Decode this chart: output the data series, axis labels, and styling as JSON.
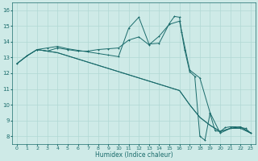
{
  "title": "",
  "xlabel": "Humidex (Indice chaleur)",
  "bg_color": "#ceeae7",
  "grid_color": "#b0d8d4",
  "line_color": "#1a6b6b",
  "xlim": [
    -0.5,
    23.5
  ],
  "ylim": [
    7.5,
    16.5
  ],
  "xticks": [
    0,
    1,
    2,
    3,
    4,
    5,
    6,
    7,
    8,
    9,
    10,
    11,
    12,
    13,
    14,
    15,
    16,
    17,
    18,
    19,
    20,
    21,
    22,
    23
  ],
  "yticks": [
    8,
    9,
    10,
    11,
    12,
    13,
    14,
    15,
    16
  ],
  "s1_x": [
    0,
    1,
    2,
    3,
    4,
    5,
    6,
    7,
    8,
    9,
    10,
    11,
    12,
    13,
    14,
    15,
    16,
    17,
    18,
    19,
    20,
    21,
    22,
    23
  ],
  "s1_y": [
    12.6,
    13.1,
    13.5,
    13.4,
    13.6,
    13.5,
    13.4,
    13.4,
    13.5,
    13.55,
    13.6,
    14.1,
    14.3,
    13.8,
    14.35,
    15.1,
    15.3,
    12.2,
    11.7,
    9.5,
    8.2,
    8.5,
    8.5,
    8.2
  ],
  "s2_x": [
    0,
    1,
    2,
    3,
    4,
    5,
    6,
    7,
    8,
    9,
    10,
    11,
    12,
    13,
    14,
    15,
    16,
    17,
    18,
    19,
    20,
    21,
    22,
    23
  ],
  "s2_y": [
    12.6,
    13.1,
    13.5,
    13.4,
    13.3,
    13.1,
    12.9,
    12.7,
    12.5,
    12.3,
    12.1,
    11.9,
    11.7,
    11.5,
    11.3,
    11.1,
    10.9,
    10.0,
    9.2,
    8.7,
    8.3,
    8.5,
    8.6,
    8.2
  ],
  "s3_x": [
    0,
    1,
    2,
    3,
    4,
    5,
    6,
    7,
    8,
    9,
    10,
    11,
    12,
    13,
    14,
    15,
    16,
    17,
    18,
    19,
    20,
    21,
    22,
    23
  ],
  "s3_y": [
    12.6,
    13.1,
    13.5,
    13.4,
    13.3,
    13.1,
    12.9,
    12.7,
    12.5,
    12.3,
    12.1,
    11.9,
    11.7,
    11.5,
    11.3,
    11.1,
    10.9,
    10.0,
    9.2,
    8.7,
    8.3,
    8.5,
    8.6,
    8.2
  ],
  "s4_x": [
    2,
    3,
    4,
    5,
    6,
    7,
    8,
    9,
    10,
    11,
    12,
    13,
    14,
    15,
    15.5,
    16,
    16.2,
    16.5,
    17,
    17.5,
    18,
    18.5,
    19,
    19.5,
    20,
    20.5,
    21,
    21.5,
    22,
    22.5,
    23
  ],
  "s4_y": [
    13.5,
    13.6,
    13.7,
    13.55,
    13.45,
    13.35,
    13.25,
    13.15,
    13.05,
    14.85,
    15.55,
    13.85,
    13.9,
    15.15,
    15.6,
    15.55,
    14.6,
    13.5,
    12.1,
    11.8,
    8.0,
    7.75,
    9.45,
    8.35,
    8.3,
    8.55,
    8.6,
    8.6,
    8.55,
    8.5,
    8.2
  ]
}
